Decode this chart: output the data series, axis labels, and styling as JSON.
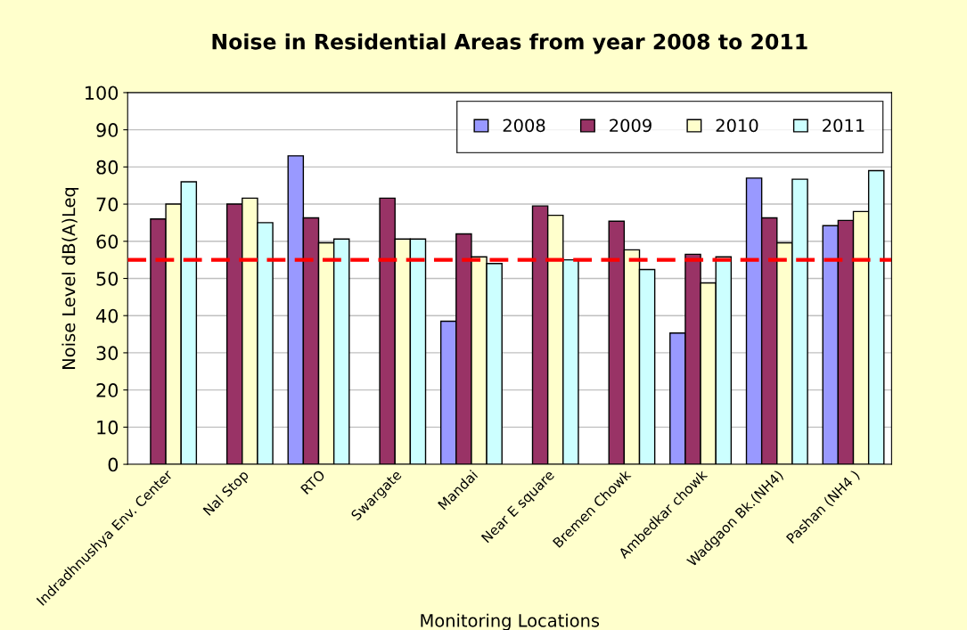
{
  "chart_data": {
    "type": "bar",
    "title": "Noise in Residential Areas from year 2008 to 2011",
    "xlabel": "Monitoring Locations",
    "ylabel": "Noise Level dB(A)Leq",
    "categories": [
      "Indradhnushya Env. Center",
      "Nal Stop",
      "RTO",
      "Swargate",
      "Mandai",
      "Near E square",
      "Bremen Chowk",
      "Ambedkar chowk",
      "Wadgaon Bk.(NH4)",
      "Pashan (NH4 )"
    ],
    "series": [
      {
        "name": "2008",
        "color": "#9999ff",
        "values": [
          null,
          null,
          83,
          null,
          38.5,
          null,
          null,
          35.3,
          77,
          64.2
        ]
      },
      {
        "name": "2009",
        "color": "#993366",
        "values": [
          66,
          70,
          66.3,
          71.6,
          62,
          69.5,
          65.4,
          56.5,
          66.3,
          65.6
        ]
      },
      {
        "name": "2010",
        "color": "#ffffcc",
        "values": [
          70,
          71.6,
          59.6,
          60.6,
          55.8,
          67,
          57.7,
          48.8,
          59.6,
          68
        ]
      },
      {
        "name": "2011",
        "color": "#ccffff",
        "values": [
          76,
          65,
          60.6,
          60.6,
          54,
          55,
          52.4,
          55.8,
          76.7,
          79
        ]
      }
    ],
    "ylim": [
      0,
      100
    ],
    "yticks": [
      0,
      10,
      20,
      30,
      40,
      50,
      60,
      70,
      80,
      90,
      100
    ],
    "ref_lines": [
      {
        "axis": "y",
        "value": 55,
        "color": "#ff0000",
        "line_style": "dashed"
      }
    ],
    "grid": "y",
    "legend": "top right"
  }
}
